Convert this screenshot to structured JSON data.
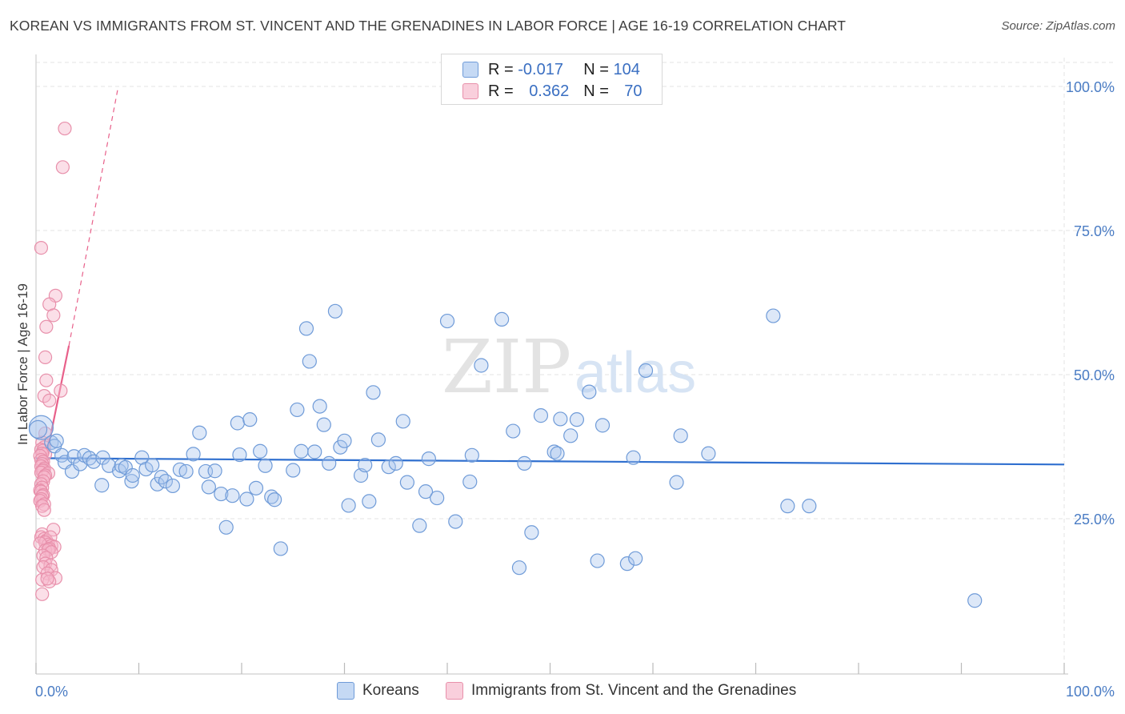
{
  "title": "KOREAN VS IMMIGRANTS FROM ST. VINCENT AND THE GRENADINES IN LABOR FORCE | AGE 16-19 CORRELATION CHART",
  "source": "Source: ZipAtlas.com",
  "watermark": {
    "zip": "ZIP",
    "atlas": "atlas"
  },
  "legend_top": {
    "rows": [
      {
        "r_label": "R =",
        "r_value": "-0.017",
        "n_label": "N =",
        "n_value": "104",
        "color": "#6f9bd8"
      },
      {
        "r_label": "R =",
        "r_value": "0.362",
        "n_label": "N =",
        "n_value": "70",
        "color": "#e890ab"
      }
    ]
  },
  "legend_bottom": {
    "koreans": "Koreans",
    "immigrants": "Immigrants from St. Vincent and the Grenadines"
  },
  "chart_data": {
    "type": "scatter",
    "ylabel": "In Labor Force | Age 16-19",
    "xlim": [
      0,
      100
    ],
    "ylim": [
      0,
      105
    ],
    "x_tick_labels": [
      "0.0%",
      "100.0%"
    ],
    "y_tick_values": [
      25,
      50,
      75,
      100
    ],
    "y_tick_labels": [
      "25.0%",
      "50.0%",
      "75.0%",
      "100.0%"
    ],
    "grid": true,
    "colors": {
      "blue": "#6f9bd8",
      "blue_fill": "#a9c6ee",
      "blue_line": "#2f6fcf",
      "pink": "#e890ab",
      "pink_fill": "#f6b9cc",
      "pink_line": "#e8608a"
    },
    "series": [
      {
        "name": "Koreans",
        "trend": {
          "x": [
            0,
            100
          ],
          "y": [
            35.5,
            34.4
          ]
        },
        "points": [
          [
            0.5,
            40.8
          ],
          [
            1.5,
            38.2
          ],
          [
            1.8,
            37.6
          ],
          [
            2.0,
            38.5
          ],
          [
            2.5,
            36
          ],
          [
            2.8,
            34.8
          ],
          [
            3.5,
            33.2
          ],
          [
            3.7,
            35.8
          ],
          [
            4.3,
            34.5
          ],
          [
            4.7,
            36
          ],
          [
            5.2,
            35.5
          ],
          [
            5.6,
            34.9
          ],
          [
            6.4,
            30.8
          ],
          [
            6.5,
            35.6
          ],
          [
            7.1,
            34.2
          ],
          [
            8.1,
            33.3
          ],
          [
            8.3,
            34.2
          ],
          [
            8.7,
            33.9
          ],
          [
            9.3,
            31.5
          ],
          [
            9.4,
            32.5
          ],
          [
            10.3,
            35.6
          ],
          [
            10.7,
            33.6
          ],
          [
            11.3,
            34.3
          ],
          [
            11.8,
            31
          ],
          [
            12.2,
            32.2
          ],
          [
            12.6,
            31.5
          ],
          [
            13.3,
            30.7
          ],
          [
            14.0,
            33.5
          ],
          [
            14.6,
            33.2
          ],
          [
            15.3,
            36.2
          ],
          [
            15.9,
            39.9
          ],
          [
            16.5,
            33.2
          ],
          [
            16.8,
            30.5
          ],
          [
            17.4,
            33.3
          ],
          [
            18.0,
            29.3
          ],
          [
            18.5,
            23.5
          ],
          [
            19.1,
            29
          ],
          [
            19.6,
            41.6
          ],
          [
            19.8,
            36.1
          ],
          [
            20.5,
            28.4
          ],
          [
            20.8,
            42.2
          ],
          [
            21.4,
            30.3
          ],
          [
            21.8,
            36.7
          ],
          [
            22.3,
            34.2
          ],
          [
            22.9,
            28.8
          ],
          [
            23.2,
            28.3
          ],
          [
            23.8,
            19.8
          ],
          [
            25.0,
            33.4
          ],
          [
            25.4,
            43.9
          ],
          [
            25.8,
            36.7
          ],
          [
            26.3,
            58
          ],
          [
            26.6,
            52.3
          ],
          [
            27.1,
            36.6
          ],
          [
            27.6,
            44.5
          ],
          [
            28.0,
            41.3
          ],
          [
            28.5,
            34.6
          ],
          [
            29.1,
            61
          ],
          [
            29.6,
            37.4
          ],
          [
            30.0,
            38.5
          ],
          [
            30.4,
            27.3
          ],
          [
            31.6,
            32.5
          ],
          [
            32.0,
            34.3
          ],
          [
            32.4,
            28
          ],
          [
            32.8,
            46.9
          ],
          [
            33.3,
            38.7
          ],
          [
            34.3,
            34
          ],
          [
            35.0,
            34.6
          ],
          [
            35.7,
            41.9
          ],
          [
            36.1,
            31.3
          ],
          [
            37.3,
            23.8
          ],
          [
            37.9,
            29.7
          ],
          [
            38.2,
            35.4
          ],
          [
            39.0,
            28.6
          ],
          [
            40.0,
            59.3
          ],
          [
            40.8,
            24.5
          ],
          [
            42.2,
            31.4
          ],
          [
            42.4,
            36
          ],
          [
            43.3,
            51.6
          ],
          [
            45.3,
            59.6
          ],
          [
            46.4,
            40.2
          ],
          [
            47.0,
            16.5
          ],
          [
            47.5,
            34.6
          ],
          [
            48.2,
            22.6
          ],
          [
            49.1,
            42.9
          ],
          [
            50.4,
            36.6
          ],
          [
            50.7,
            36.3
          ],
          [
            51.0,
            42.3
          ],
          [
            52.0,
            39.4
          ],
          [
            52.6,
            42.2
          ],
          [
            53.8,
            47
          ],
          [
            54.6,
            17.7
          ],
          [
            55.1,
            41.2
          ],
          [
            57.5,
            17.2
          ],
          [
            58.1,
            35.6
          ],
          [
            58.3,
            18.1
          ],
          [
            59.3,
            50.7
          ],
          [
            62.3,
            31.3
          ],
          [
            62.7,
            39.4
          ],
          [
            65.4,
            36.3
          ],
          [
            71.7,
            60.2
          ],
          [
            73.1,
            27.2
          ],
          [
            75.2,
            27.2
          ],
          [
            91.3,
            10.8
          ],
          [
            0.2,
            40.5
          ]
        ],
        "sizes": {
          "0": 30,
          "103": 22
        }
      },
      {
        "name": "Immigrants from St. Vincent and the Grenadines",
        "trend": {
          "x": [
            0,
            3.2
          ],
          "y": [
            27,
            55
          ],
          "dashed_x": [
            3.2,
            8.0
          ],
          "dashed_y": [
            55,
            100
          ]
        },
        "points": [
          [
            2.8,
            92.7
          ],
          [
            2.6,
            86
          ],
          [
            0.5,
            72
          ],
          [
            1.9,
            63.7
          ],
          [
            1.3,
            62.2
          ],
          [
            1.7,
            60.3
          ],
          [
            1.0,
            58.3
          ],
          [
            0.9,
            53
          ],
          [
            1.0,
            49
          ],
          [
            2.4,
            47.2
          ],
          [
            0.8,
            46.3
          ],
          [
            1.3,
            45.5
          ],
          [
            0.9,
            39.8
          ],
          [
            0.6,
            38.2
          ],
          [
            0.8,
            37.4
          ],
          [
            0.5,
            37
          ],
          [
            0.7,
            36.8
          ],
          [
            0.9,
            36.2
          ],
          [
            0.6,
            36.3
          ],
          [
            0.4,
            35.9
          ],
          [
            0.5,
            35.2
          ],
          [
            0.7,
            34.9
          ],
          [
            0.6,
            34.5
          ],
          [
            0.5,
            34.1
          ],
          [
            0.8,
            33.7
          ],
          [
            0.6,
            33.3
          ],
          [
            0.7,
            33.4
          ],
          [
            0.5,
            33
          ],
          [
            1.2,
            32.9
          ],
          [
            0.9,
            32.5
          ],
          [
            0.8,
            32.2
          ],
          [
            0.7,
            31.5
          ],
          [
            0.5,
            31
          ],
          [
            0.6,
            30.4
          ],
          [
            0.4,
            29.9
          ],
          [
            0.5,
            29.7
          ],
          [
            0.7,
            29.1
          ],
          [
            0.6,
            28.9
          ],
          [
            0.5,
            28.4
          ],
          [
            0.4,
            28.1
          ],
          [
            0.8,
            27.5
          ],
          [
            0.6,
            27.2
          ],
          [
            0.8,
            26.5
          ],
          [
            1.7,
            23.1
          ],
          [
            0.6,
            22.3
          ],
          [
            0.5,
            21.8
          ],
          [
            0.8,
            21.5
          ],
          [
            1.0,
            21.2
          ],
          [
            1.4,
            21.8
          ],
          [
            0.9,
            20.9
          ],
          [
            1.2,
            20.5
          ],
          [
            1.5,
            20.3
          ],
          [
            1.8,
            20.1
          ],
          [
            0.4,
            20.7
          ],
          [
            1.3,
            19.8
          ],
          [
            0.9,
            19.5
          ],
          [
            1.2,
            19.6
          ],
          [
            1.5,
            19.2
          ],
          [
            0.7,
            18.6
          ],
          [
            1.0,
            18.2
          ],
          [
            0.9,
            17.2
          ],
          [
            1.4,
            16.9
          ],
          [
            0.7,
            16.6
          ],
          [
            1.5,
            16.1
          ],
          [
            1.1,
            15.5
          ],
          [
            1.9,
            14.7
          ],
          [
            0.6,
            14.4
          ],
          [
            1.3,
            14.1
          ],
          [
            0.6,
            11.9
          ],
          [
            1.1,
            14.6
          ]
        ]
      }
    ]
  }
}
